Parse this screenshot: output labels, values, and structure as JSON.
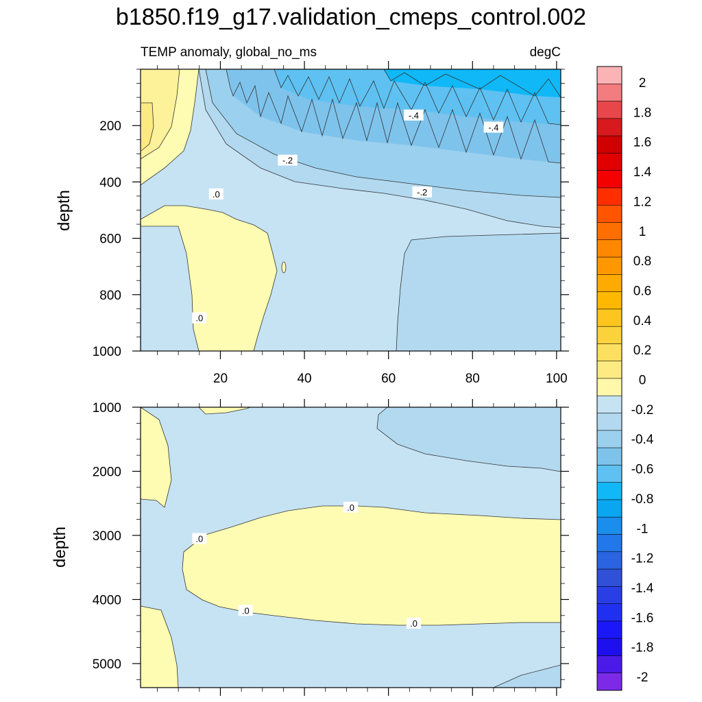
{
  "title": "b1850.f19_g17.validation_cmeps_control.002",
  "chart_data": [
    {
      "type": "contour",
      "panel": "upper",
      "left_label": "TEMP anomaly, global_no_ms",
      "right_label": "degC",
      "ylabel": "depth",
      "xlabel": "",
      "xlim": [
        1,
        101
      ],
      "ylim": [
        1000,
        0
      ],
      "xticks": [
        20,
        40,
        60,
        80,
        100
      ],
      "xtick_labels": [
        "20",
        "40",
        "60",
        "80",
        "100"
      ],
      "yticks": [
        200,
        400,
        600,
        800,
        1000
      ],
      "ytick_labels": [
        "200",
        "400",
        "600",
        "800",
        "1000"
      ],
      "contour_labels": [
        {
          "text": ".0",
          "x": 15,
          "y": 885
        },
        {
          "text": ".0",
          "x": 19,
          "y": 445
        },
        {
          "text": "-.2",
          "x": 36,
          "y": 325
        },
        {
          "text": "-.2",
          "x": 68,
          "y": 438
        },
        {
          "text": "-.4",
          "x": 66,
          "y": 165
        },
        {
          "text": "-.4",
          "x": 85,
          "y": 208
        }
      ]
    },
    {
      "type": "contour",
      "panel": "lower",
      "ylabel": "depth",
      "xlabel": "",
      "xlim": [
        1,
        101
      ],
      "ylim": [
        5375,
        1000
      ],
      "xticks": [
        20,
        40,
        60,
        80,
        100
      ],
      "yticks": [
        1000,
        2000,
        3000,
        4000,
        5000
      ],
      "ytick_labels": [
        "1000",
        "2000",
        "3000",
        "4000",
        "5000"
      ],
      "contour_labels": [
        {
          "text": ".0",
          "x": 51,
          "y": 2570
        },
        {
          "text": ".0",
          "x": 15,
          "y": 3060
        },
        {
          "text": ".0",
          "x": 26,
          "y": 4180
        },
        {
          "text": ".0",
          "x": 66,
          "y": 4380
        }
      ]
    }
  ],
  "colorbar": {
    "labels": [
      "2",
      "1.8",
      "1.6",
      "1.4",
      "1.2",
      "1",
      "0.8",
      "0.6",
      "0.4",
      "0.2",
      "0",
      "-0.2",
      "-0.4",
      "-0.6",
      "-0.8",
      "-1",
      "-1.2",
      "-1.4",
      "-1.6",
      "-1.8",
      "-2"
    ],
    "colors": [
      "#fbb3b6",
      "#f27c7e",
      "#e8464a",
      "#d81a1e",
      "#d00000",
      "#e00000",
      "#f50000",
      "#ff2e00",
      "#ff5500",
      "#ff6f00",
      "#ff8800",
      "#ff9800",
      "#ffaa00",
      "#ffb800",
      "#fcc61e",
      "#fcd23c",
      "#fde060",
      "#fdeb82",
      "#fff7aa",
      "#c6e3f4",
      "#b2d9ef",
      "#9bd0ee",
      "#7ec3ec",
      "#5ec1f2",
      "#10b8f8",
      "#0aa6f2",
      "#1a8eec",
      "#2278ea",
      "#2a64e0",
      "#3050d8",
      "#2a3ee6",
      "#2030f0",
      "#1a18f8",
      "#1e10ee",
      "#4c1ae8",
      "#7c2ae8"
    ]
  },
  "fill_colors": {
    "pos_low": "#fefcb2",
    "pos_mid": "#fdf19a",
    "pos_high": "#fce980",
    "neg_low": "#c6e3f4",
    "neg_mid": "#b2d9ef",
    "neg_2": "#9bd0ee",
    "neg_3": "#7ec3ec",
    "neg_4": "#5ec1f2",
    "neg_5": "#10b8f8"
  }
}
